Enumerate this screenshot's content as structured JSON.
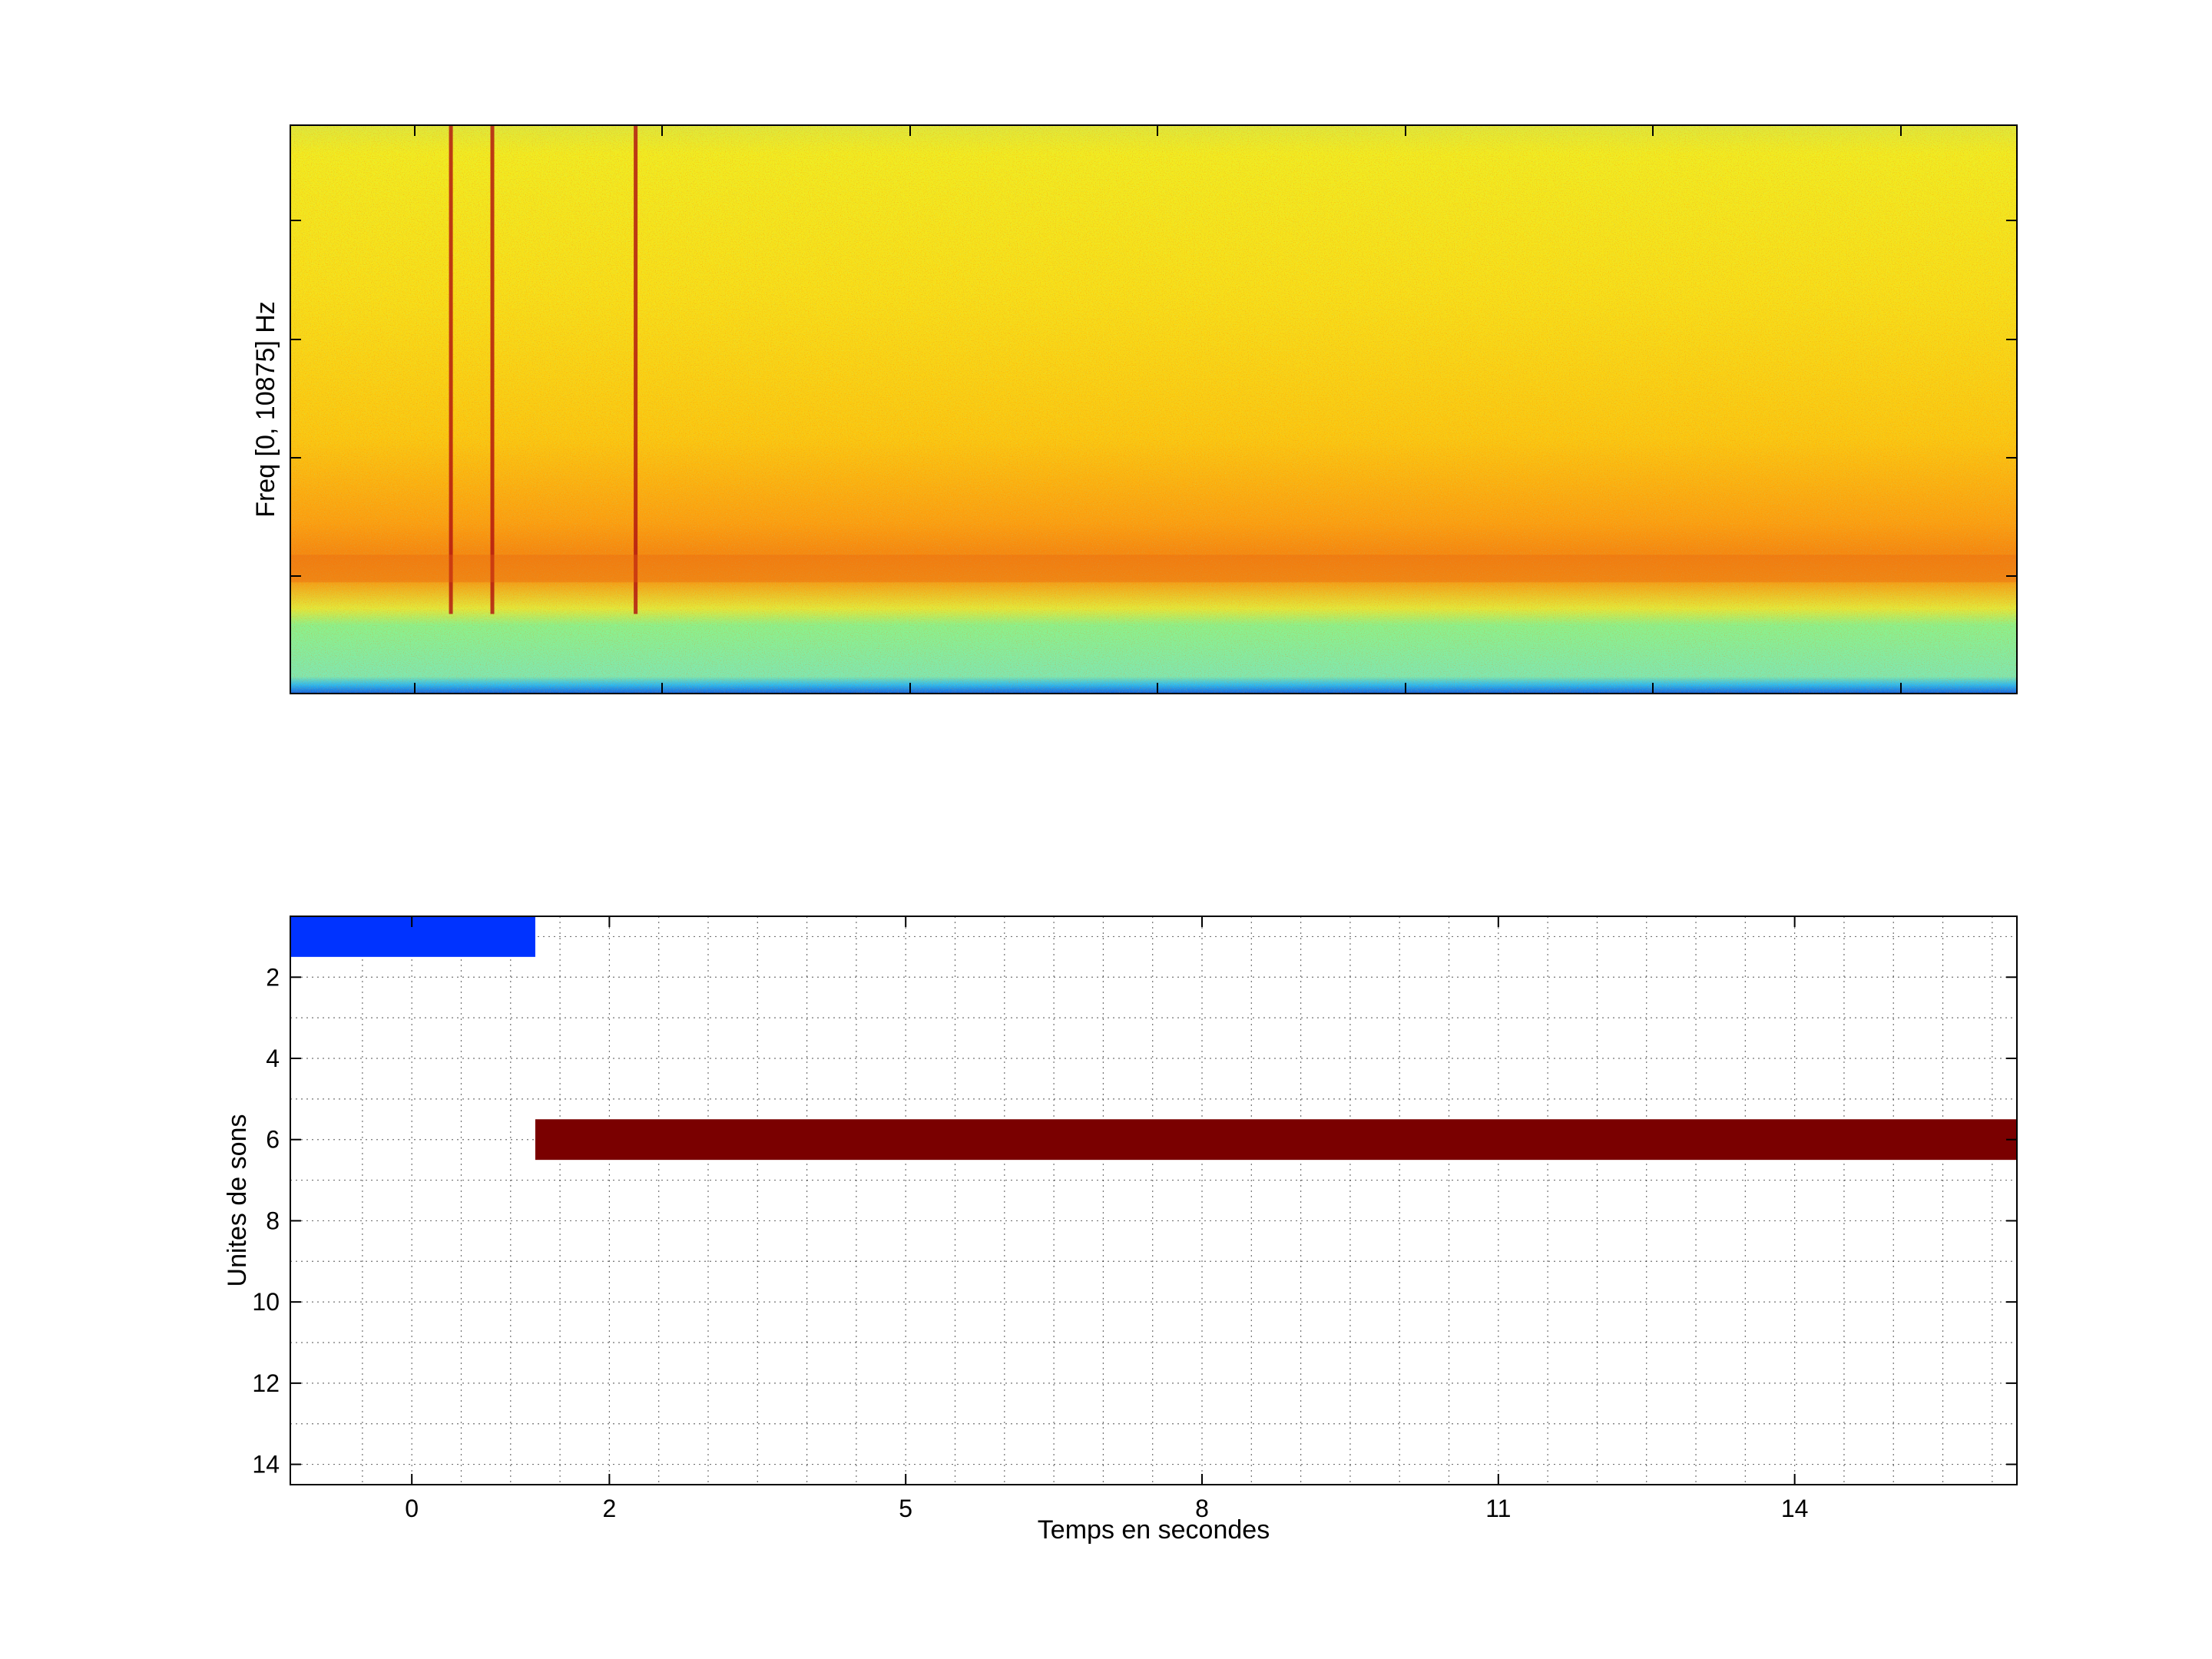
{
  "chart_data": [
    {
      "type": "heatmap",
      "kind": "spectrogram",
      "title": "",
      "xlabel": "",
      "ylabel": "Freq [0, 10875] Hz",
      "colormap": "jet",
      "grid": false,
      "yrange_hz": [
        0,
        10875
      ],
      "features": [
        {
          "description": "broadband vertical click",
          "x_time_frac": 0.093
        },
        {
          "description": "broadband vertical click",
          "x_time_frac": 0.117
        },
        {
          "description": "broadband vertical click",
          "x_time_frac": 0.2
        },
        {
          "description": "energy band",
          "y_freq_frac": 0.22
        }
      ]
    },
    {
      "type": "bar",
      "orientation": "horizontal",
      "xlabel": "Temps en secondes",
      "ylabel": "Unites de sons",
      "xticklabels": [
        "0",
        "2",
        "5",
        "8",
        "11",
        "14"
      ],
      "xticks": [
        0,
        2,
        5,
        8,
        11,
        14
      ],
      "xlim": [
        -1.23,
        16.25
      ],
      "yticklabels": [
        "2",
        "4",
        "6",
        "8",
        "10",
        "12",
        "14"
      ],
      "yticks": [
        2,
        4,
        6,
        8,
        10,
        12,
        14
      ],
      "ylim": [
        0.5,
        14.5
      ],
      "y_reversed": true,
      "grid": true,
      "segments": [
        {
          "unit": 1,
          "start": -1.23,
          "end": 1.25,
          "color": "#0033ff"
        },
        {
          "unit": 6,
          "start": 1.25,
          "end": 16.25,
          "color": "#7a0000"
        }
      ]
    }
  ]
}
